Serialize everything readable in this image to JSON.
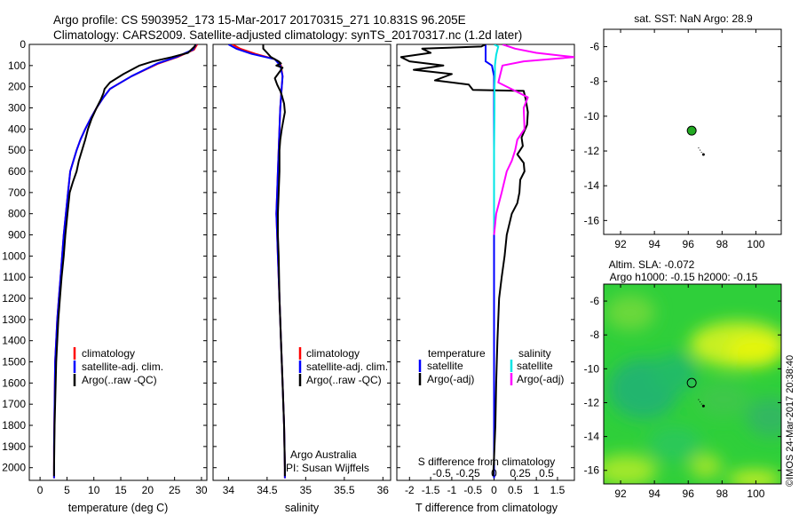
{
  "header": {
    "line1": "Argo profile: CS 5903952_173 15-Mar-2017 20170315_271 10.831S 96.205E",
    "line2": "Climatology: CARS2009. Satellite-adjusted climatology: synTS_20170317.nc (1.2d later)"
  },
  "panels": {
    "temperature": {
      "xlabel": "temperature (deg C)",
      "xticks": [
        "0",
        "5",
        "10",
        "15",
        "20",
        "25",
        "30"
      ],
      "legend": [
        "climatology",
        "satellite-adj. clim.",
        "Argo(..raw -QC)"
      ]
    },
    "salinity": {
      "xlabel": "salinity",
      "xticks": [
        "34",
        "34.5",
        "35",
        "35.5",
        "36"
      ],
      "legend": [
        "climatology",
        "satellite-adj. clim.",
        "Argo(..raw -QC)"
      ],
      "credit1": "Argo Australia",
      "credit2": "PI: Susan Wijffels"
    },
    "difference": {
      "xlabel_bottom": "T difference from climatology",
      "xlabel_top": "S difference from climatology",
      "xticks_bottom": [
        "-2",
        "-1.5",
        "-1",
        "-0.5",
        "0",
        "0.5",
        "1",
        "1.5"
      ],
      "xticks_top": [
        "-0.5",
        "-0.25",
        "0",
        "0.25",
        "0.5"
      ],
      "legend_head_left": "temperature",
      "legend_head_right": "salinity",
      "legend_left": [
        "satellite",
        "Argo(-adj)"
      ],
      "legend_right": [
        "satellite",
        "Argo(-adj)"
      ]
    },
    "map_top": {
      "title": "sat. SST: NaN Argo: 28.9",
      "xticks": [
        "92",
        "94",
        "96",
        "98",
        "100"
      ],
      "yticks": [
        "-6",
        "-8",
        "-10",
        "-12",
        "-14",
        "-16"
      ]
    },
    "map_bottom": {
      "title1": "Altim. SLA: -0.072",
      "title2": "Argo h1000: -0.15 h2000: -0.15",
      "xticks": [
        "92",
        "94",
        "96",
        "98",
        "100"
      ],
      "yticks": [
        "-6",
        "-8",
        "-10",
        "-12",
        "-14",
        "-16"
      ],
      "side_label": "©IMOS 24-Mar-2017 20:38:40"
    }
  },
  "y_axis": {
    "ticks": [
      "0",
      "100",
      "200",
      "300",
      "400",
      "500",
      "600",
      "700",
      "800",
      "900",
      "1000",
      "1100",
      "1200",
      "1300",
      "1400",
      "1500",
      "1600",
      "1700",
      "1800",
      "1900",
      "2000"
    ]
  },
  "colors": {
    "climatology": "#ff0000",
    "satellite": "#0000ff",
    "argo": "#000000",
    "sal_satellite": "#00e5e5",
    "sal_argo": "#ff00ff",
    "float_dot": "#22aa22"
  },
  "chart_data": [
    {
      "type": "line",
      "xlabel": "temperature (deg C)",
      "ylabel": "",
      "xlim": [
        -2,
        31
      ],
      "ylim": [
        2060,
        0
      ],
      "series": [
        {
          "name": "climatology",
          "x": [
            29.2,
            28.6,
            25.5,
            22,
            17,
            13,
            11.8,
            10.5,
            9.4,
            8.4,
            7.5,
            6.8,
            6.2,
            5.6,
            5.2,
            4.8,
            4.4,
            4.1,
            3.8,
            3.5,
            3.2,
            3.0,
            2.8,
            2.7,
            2.6,
            2.6
          ],
          "y": [
            0,
            25,
            60,
            90,
            150,
            210,
            250,
            300,
            350,
            400,
            450,
            500,
            550,
            600,
            700,
            800,
            900,
            1000,
            1100,
            1200,
            1300,
            1400,
            1500,
            1700,
            1900,
            2050
          ]
        },
        {
          "name": "satellite-adj. clim.",
          "x": [
            29.0,
            28.4,
            25.3,
            21.8,
            17,
            13,
            11.8,
            10.5,
            9.4,
            8.4,
            7.5,
            6.8,
            6.2,
            5.6,
            5.2,
            4.8,
            4.4,
            4.1,
            3.8,
            3.5,
            3.2,
            3.0,
            2.8,
            2.7,
            2.6,
            2.6
          ],
          "y": [
            0,
            25,
            60,
            90,
            150,
            210,
            250,
            300,
            350,
            400,
            450,
            500,
            550,
            600,
            700,
            800,
            900,
            1000,
            1100,
            1200,
            1300,
            1400,
            1500,
            1700,
            1900,
            2050
          ]
        },
        {
          "name": "Argo(..raw -QC)",
          "x": [
            28.9,
            28.7,
            27.5,
            24.5,
            21,
            18.5,
            15.5,
            13,
            12,
            11.8,
            11.3,
            10.5,
            9.6,
            8.9,
            8.4,
            7.8,
            7.2,
            6.8,
            6.1,
            5.5,
            5.1,
            4.7,
            4.4,
            4.0,
            3.7,
            3.4,
            3.2,
            3.0,
            2.9,
            2.8,
            2.7,
            2.65,
            2.6,
            2.6
          ],
          "y": [
            0,
            10,
            40,
            60,
            80,
            100,
            140,
            180,
            210,
            230,
            260,
            300,
            350,
            400,
            450,
            500,
            550,
            600,
            650,
            700,
            800,
            900,
            1000,
            1100,
            1200,
            1300,
            1400,
            1500,
            1600,
            1700,
            1800,
            1900,
            2000,
            2040
          ]
        }
      ]
    },
    {
      "type": "line",
      "xlabel": "salinity",
      "ylabel": "",
      "xlim": [
        33.8,
        36.1
      ],
      "ylim": [
        2060,
        0
      ],
      "series": [
        {
          "name": "climatology",
          "x": [
            34.05,
            34.15,
            34.35,
            34.6,
            34.68,
            34.7,
            34.69,
            34.67,
            34.66,
            34.65,
            34.64,
            34.63,
            34.62,
            34.63,
            34.64,
            34.66,
            34.68,
            34.7,
            34.72,
            34.73,
            34.73
          ],
          "y": [
            0,
            20,
            45,
            70,
            100,
            150,
            200,
            300,
            400,
            500,
            600,
            700,
            800,
            900,
            1000,
            1200,
            1400,
            1600,
            1800,
            2000,
            2050
          ]
        },
        {
          "name": "satellite-adj. clim.",
          "x": [
            34.0,
            34.1,
            34.3,
            34.6,
            34.67,
            34.7,
            34.69,
            34.67,
            34.66,
            34.65,
            34.64,
            34.63,
            34.62,
            34.63,
            34.64,
            34.66,
            34.68,
            34.7,
            34.72,
            34.73,
            34.73
          ],
          "y": [
            0,
            20,
            45,
            70,
            100,
            150,
            200,
            300,
            400,
            500,
            600,
            700,
            800,
            900,
            1000,
            1200,
            1400,
            1600,
            1800,
            2000,
            2050
          ]
        },
        {
          "name": "Argo(..raw -QC)",
          "x": [
            34.45,
            34.45,
            34.5,
            34.55,
            34.65,
            34.68,
            34.62,
            34.7,
            34.66,
            34.6,
            34.63,
            34.67,
            34.69,
            34.72,
            34.73,
            34.71,
            34.69,
            34.67,
            34.66,
            34.66,
            34.65,
            34.64,
            34.64,
            34.65,
            34.66,
            34.68,
            34.7,
            34.72,
            34.73,
            34.73
          ],
          "y": [
            0,
            20,
            40,
            60,
            80,
            90,
            100,
            110,
            130,
            160,
            190,
            220,
            240,
            280,
            320,
            360,
            400,
            450,
            500,
            600,
            700,
            800,
            900,
            1000,
            1200,
            1400,
            1600,
            1800,
            2000,
            2040
          ]
        }
      ]
    },
    {
      "type": "line",
      "xlabel": "T difference from climatology",
      "ylabel": "",
      "xlim": [
        -2.3,
        1.9
      ],
      "ylim": [
        2060,
        0
      ],
      "series": [
        {
          "name": "temperature satellite",
          "x": [
            -0.2,
            -0.2,
            -0.2,
            -0.2,
            -0.2,
            -0.05,
            0,
            0,
            0,
            0,
            0,
            0
          ],
          "y": [
            0,
            20,
            40,
            60,
            80,
            100,
            150,
            300,
            600,
            1000,
            1500,
            2050
          ]
        },
        {
          "name": "temperature Argo(-adj)",
          "x": [
            -0.2,
            -0.3,
            -1.7,
            -1.5,
            -2.2,
            -2.0,
            -1.2,
            -1.9,
            -1.0,
            -1.4,
            -0.6,
            -0.5,
            0.7,
            0.75,
            0.8,
            0.78,
            0.65,
            0.68,
            0.55,
            0.7,
            0.72,
            0.62,
            0.6,
            0.55,
            0.42,
            0.3,
            0.25,
            0.18,
            0.12,
            0.08,
            0.05,
            0.03,
            0.0,
            -0.02
          ],
          "y": [
            0,
            10,
            20,
            40,
            60,
            80,
            100,
            120,
            140,
            170,
            190,
            215,
            220,
            260,
            320,
            380,
            440,
            480,
            520,
            560,
            600,
            640,
            700,
            750,
            800,
            900,
            1000,
            1100,
            1200,
            1400,
            1600,
            1800,
            1950,
            2040
          ]
        },
        {
          "name": "salinity satellite",
          "x": [
            0.0,
            0.1,
            0.08,
            0.05,
            0.03,
            0.02,
            0.02,
            0.01,
            0.01,
            0,
            0,
            0
          ],
          "y": [
            0,
            10,
            25,
            50,
            80,
            100,
            150,
            200,
            300,
            500,
            800,
            900
          ]
        },
        {
          "name": "salinity Argo(-adj)",
          "x": [
            0.2,
            0.5,
            1.0,
            1.9,
            0.7,
            0.2,
            0.1,
            0.5,
            0.8,
            0.7,
            0.72,
            0.55,
            0.5,
            0.42,
            0.3,
            0.18,
            0.05,
            0.0
          ],
          "y": [
            0,
            20,
            40,
            60,
            80,
            100,
            180,
            220,
            250,
            300,
            400,
            450,
            500,
            550,
            600,
            700,
            800,
            900
          ]
        }
      ]
    }
  ],
  "maps": {
    "top": {
      "xlim": [
        91,
        101.5
      ],
      "ylim": [
        -16.8,
        -5
      ],
      "float_position": {
        "lon": 96.205,
        "lat": -10.831
      },
      "track": [
        [
          96.6,
          -11.8
        ],
        [
          96.9,
          -12.2
        ]
      ]
    },
    "bottom": {
      "xlim": [
        91,
        101.5
      ],
      "ylim": [
        -16.8,
        -5
      ],
      "float_position": {
        "lon": 96.205,
        "lat": -10.831
      },
      "track": [
        [
          96.6,
          -11.8
        ],
        [
          96.9,
          -12.2
        ]
      ]
    }
  }
}
